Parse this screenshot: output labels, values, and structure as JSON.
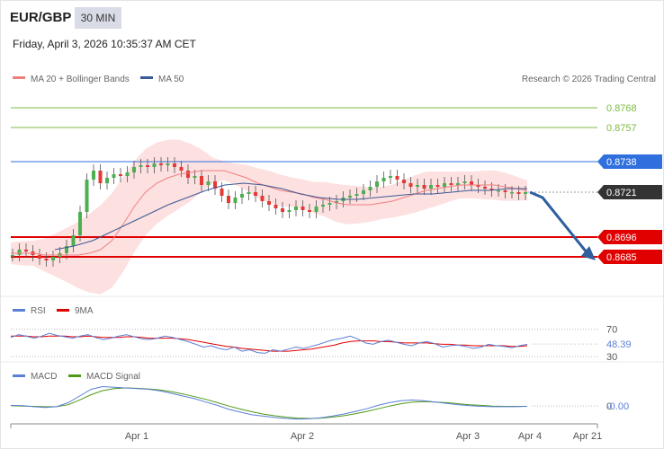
{
  "header": {
    "pair": "EUR/GBP",
    "timeframe": "30 MIN",
    "datetime": "Friday, April 3, 2026 10:35:37 AM CET"
  },
  "colors": {
    "green_level": "#7dbb42",
    "blue_level": "#2f6fde",
    "red_level": "#e00000",
    "current_price": "#333333",
    "bollinger_fill": "#fde0e0",
    "ma20": "#f08080",
    "ma50": "#3a5a96",
    "rsi": "#5b7fd6",
    "rsi_ma": "#e00000",
    "macd": "#5b7fd6",
    "macd_signal": "#4e9a16",
    "arrow": "#2f5f9e",
    "candle_up": "#4caf50",
    "candle_down": "#e53935"
  },
  "chart_data": [
    {
      "type": "candlestick",
      "legend": [
        {
          "label": "MA 20 + Bollinger Bands",
          "color": "#f08080"
        },
        {
          "label": "MA 50",
          "color": "#3a5a96"
        }
      ],
      "copyright": "Research © 2026 Trading Central",
      "ylim": [
        0.8665,
        0.878
      ],
      "x_ticks": [
        "Apr 1",
        "Apr 2",
        "Apr 3",
        "Apr 4",
        "Apr 21"
      ],
      "levels": [
        {
          "value": 0.8768,
          "label": "0.8768",
          "style": "green"
        },
        {
          "value": 0.8757,
          "label": "0.8757",
          "style": "green"
        },
        {
          "value": 0.8738,
          "label": "0.8738",
          "style": "blue"
        },
        {
          "value": 0.8721,
          "label": "0.8721",
          "style": "current"
        },
        {
          "value": 0.8696,
          "label": "0.8696",
          "style": "red"
        },
        {
          "value": 0.8685,
          "label": "0.8685",
          "style": "red"
        }
      ],
      "close_path": [
        0.8686,
        0.8689,
        0.8688,
        0.8686,
        0.8684,
        0.8683,
        0.8685,
        0.8687,
        0.8691,
        0.8697,
        0.871,
        0.8728,
        0.8733,
        0.8726,
        0.8729,
        0.8731,
        0.873,
        0.8732,
        0.8735,
        0.8736,
        0.8735,
        0.8737,
        0.8736,
        0.8737,
        0.8735,
        0.8733,
        0.8729,
        0.873,
        0.8725,
        0.8727,
        0.8723,
        0.8719,
        0.8715,
        0.8718,
        0.872,
        0.8721,
        0.8719,
        0.8716,
        0.8714,
        0.8712,
        0.871,
        0.8711,
        0.8713,
        0.8711,
        0.871,
        0.8713,
        0.8714,
        0.8715,
        0.8716,
        0.8718,
        0.8719,
        0.872,
        0.8722,
        0.8724,
        0.8727,
        0.8729,
        0.873,
        0.8728,
        0.8726,
        0.8724,
        0.8725,
        0.8723,
        0.8725,
        0.8724,
        0.8726,
        0.8725,
        0.8726,
        0.8727,
        0.8725,
        0.8724,
        0.8723,
        0.8722,
        0.8722,
        0.8721,
        0.8721,
        0.872,
        0.8721
      ],
      "ma20": [
        0.8687,
        0.8687,
        0.8687,
        0.8686,
        0.8686,
        0.8686,
        0.8686,
        0.8687,
        0.8689,
        0.8694,
        0.8703,
        0.8713,
        0.8721,
        0.8726,
        0.8729,
        0.8731,
        0.8732,
        0.8733,
        0.8733,
        0.8733,
        0.8731,
        0.8729,
        0.8726,
        0.8724,
        0.8722,
        0.8721,
        0.872,
        0.8718,
        0.8717,
        0.8715,
        0.8714,
        0.8714,
        0.8714,
        0.8715,
        0.8716,
        0.8718,
        0.872,
        0.8722,
        0.8723,
        0.8724,
        0.8725,
        0.8725,
        0.8725,
        0.8725,
        0.8724,
        0.8723,
        0.8722
      ],
      "ma50": [
        0.8689,
        0.8691,
        0.8694,
        0.8699,
        0.8704,
        0.8709,
        0.8714,
        0.8718,
        0.8722,
        0.8725,
        0.8726,
        0.8725,
        0.8723,
        0.872,
        0.8718,
        0.8717,
        0.8717,
        0.8718,
        0.8719,
        0.872,
        0.872,
        0.8721,
        0.8722,
        0.8722,
        0.8723,
        0.8723
      ],
      "projection": [
        0.8721,
        0.8718,
        0.8685
      ]
    },
    {
      "type": "line",
      "legend": [
        {
          "label": "RSI",
          "color": "#5b7fd6"
        },
        {
          "label": "9MA",
          "color": "#e00000"
        }
      ],
      "ylim": [
        25,
        80
      ],
      "ticks": [
        {
          "value": 70,
          "label": "70"
        },
        {
          "value": 30,
          "label": "30"
        }
      ],
      "last_value": {
        "value": 48.39,
        "label": "48.39"
      },
      "series": [
        {
          "name": "RSI",
          "values": [
            58,
            62,
            60,
            57,
            60,
            64,
            61,
            59,
            57,
            60,
            62,
            58,
            55,
            57,
            60,
            62,
            59,
            56,
            55,
            57,
            60,
            58,
            55,
            52,
            48,
            44,
            46,
            42,
            40,
            44,
            38,
            40,
            36,
            35,
            40,
            38,
            41,
            44,
            42,
            45,
            48,
            52,
            55,
            57,
            60,
            56,
            50,
            48,
            52,
            54,
            51,
            48,
            46,
            50,
            52,
            49,
            44,
            46,
            47,
            45,
            42,
            44,
            48,
            46,
            45,
            43,
            46,
            48
          ]
        },
        {
          "name": "9MA",
          "values": [
            60,
            60,
            60,
            59,
            59,
            60,
            60,
            60,
            59,
            59,
            60,
            59,
            58,
            58,
            58,
            59,
            59,
            58,
            57,
            57,
            57,
            57,
            56,
            55,
            53,
            51,
            49,
            47,
            45,
            44,
            42,
            41,
            40,
            39,
            38,
            38,
            38,
            39,
            40,
            41,
            43,
            45,
            47,
            50,
            52,
            53,
            53,
            53,
            52,
            52,
            51,
            50,
            50,
            50,
            50,
            49,
            48,
            48,
            47,
            47,
            46,
            46,
            46,
            46,
            46,
            45,
            45,
            46
          ]
        }
      ]
    },
    {
      "type": "line",
      "legend": [
        {
          "label": "MACD",
          "color": "#5b7fd6"
        },
        {
          "label": "MACD Signal",
          "color": "#4e9a16"
        }
      ],
      "ylim": [
        -0.00045,
        0.0007
      ],
      "ticks": [
        {
          "value": 0,
          "label": "0"
        }
      ],
      "last_value": {
        "value": 0,
        "label": "-0.00"
      },
      "series": [
        {
          "name": "MACD",
          "values": [
            2e-05,
            1e-05,
            -2e-05,
            -4e-05,
            -2e-05,
            0.0001,
            0.0003,
            0.0005,
            0.00058,
            0.00056,
            0.00054,
            0.00052,
            0.0005,
            0.00045,
            0.00038,
            0.0003,
            0.00022,
            0.00012,
            2e-05,
            -0.0001,
            -0.00018,
            -0.00026,
            -0.0003,
            -0.00034,
            -0.00037,
            -0.00039,
            -0.00038,
            -0.00035,
            -0.0003,
            -0.00024,
            -0.00016,
            -8e-05,
            2e-05,
            0.0001,
            0.00016,
            0.00018,
            0.00016,
            0.00012,
            8e-05,
            4e-05,
            1e-05,
            -1e-05,
            -2e-05,
            -2e-05,
            -2e-05,
            -1e-05
          ]
        },
        {
          "name": "MACD Signal",
          "values": [
            1e-05,
            0.0,
            -1e-05,
            -2e-05,
            -2e-05,
            4e-05,
            0.00018,
            0.00034,
            0.00046,
            0.00052,
            0.00054,
            0.00053,
            0.00051,
            0.00048,
            0.00043,
            0.00036,
            0.00028,
            0.0002,
            0.0001,
            0.0,
            -9e-05,
            -0.00017,
            -0.00024,
            -0.00029,
            -0.00033,
            -0.00036,
            -0.00037,
            -0.00036,
            -0.00033,
            -0.00029,
            -0.00023,
            -0.00016,
            -8e-05,
            0.0,
            7e-05,
            0.00012,
            0.00013,
            0.00012,
            0.0001,
            7e-05,
            4e-05,
            2e-05,
            0.0,
            -1e-05,
            -1e-05,
            -1e-05
          ]
        }
      ]
    }
  ]
}
